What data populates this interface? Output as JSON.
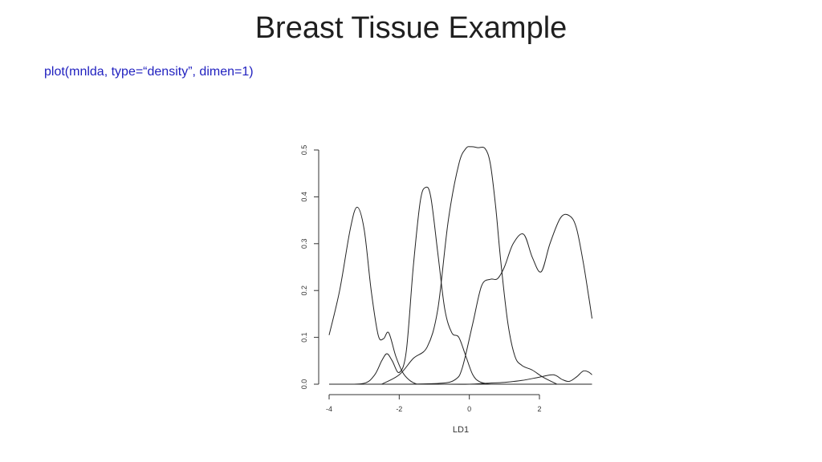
{
  "slide": {
    "title": "Breast Tissue Example",
    "code": "plot(mnlda, type=“density”, dimen=1)"
  },
  "chart_data": {
    "type": "line",
    "title": "",
    "xlabel": "LD1",
    "ylabel": "",
    "xlim": [
      -4,
      3.5
    ],
    "ylim": [
      0,
      0.5
    ],
    "xticks": [
      "-4",
      "-2",
      "0",
      "2"
    ],
    "yticks": [
      "0.0",
      "0.1",
      "0.2",
      "0.3",
      "0.4",
      "0.5"
    ],
    "grid": false,
    "legend": "none",
    "line_color": "#222222",
    "series": [
      {
        "x": [
          -4.0,
          -3.7,
          -3.4,
          -3.2,
          -3.0,
          -2.8,
          -2.6,
          -2.45,
          -2.3,
          -2.1,
          -1.9,
          -1.7,
          -1.5
        ],
        "y": [
          0.105,
          0.2,
          0.33,
          0.378,
          0.33,
          0.2,
          0.105,
          0.097,
          0.11,
          0.06,
          0.025,
          0.008,
          0.0
        ]
      },
      {
        "x": [
          -3.7,
          -3.0,
          -2.7,
          -2.5,
          -2.35,
          -2.2,
          -2.0,
          -1.8,
          -1.6,
          -1.4,
          -1.25,
          -1.1,
          -0.9,
          -0.7,
          -0.5,
          -0.3,
          -0.1,
          0.1,
          0.3,
          0.6
        ],
        "y": [
          0.0,
          0.002,
          0.02,
          0.05,
          0.065,
          0.05,
          0.025,
          0.07,
          0.25,
          0.39,
          0.42,
          0.4,
          0.28,
          0.16,
          0.11,
          0.1,
          0.06,
          0.02,
          0.005,
          0.0
        ]
      },
      {
        "x": [
          -2.5,
          -2.0,
          -1.6,
          -1.2,
          -0.9,
          -0.6,
          -0.3,
          -0.1,
          0.05,
          0.25,
          0.45,
          0.6,
          0.75,
          0.9,
          1.1,
          1.3,
          1.5,
          1.8,
          2.1,
          2.5
        ],
        "y": [
          0.0,
          0.02,
          0.055,
          0.08,
          0.16,
          0.35,
          0.47,
          0.503,
          0.507,
          0.505,
          0.503,
          0.47,
          0.38,
          0.26,
          0.13,
          0.06,
          0.04,
          0.03,
          0.015,
          0.0
        ]
      },
      {
        "x": [
          -1.8,
          -0.8,
          -0.4,
          -0.2,
          0.1,
          0.35,
          0.6,
          0.8,
          1.0,
          1.25,
          1.55,
          1.8,
          2.05,
          2.3,
          2.6,
          2.85,
          3.05,
          3.25,
          3.4,
          3.5
        ],
        "y": [
          0.0,
          0.002,
          0.01,
          0.035,
          0.13,
          0.21,
          0.224,
          0.225,
          0.25,
          0.3,
          0.32,
          0.27,
          0.24,
          0.3,
          0.355,
          0.36,
          0.335,
          0.26,
          0.19,
          0.14
        ]
      },
      {
        "x": [
          -0.8,
          0.0,
          0.5,
          1.0,
          1.5,
          2.0,
          2.4,
          2.65,
          2.85,
          3.05,
          3.25,
          3.4,
          3.5
        ],
        "y": [
          0.0,
          0.0,
          0.002,
          0.004,
          0.008,
          0.015,
          0.02,
          0.01,
          0.006,
          0.015,
          0.028,
          0.026,
          0.02
        ]
      }
    ]
  }
}
